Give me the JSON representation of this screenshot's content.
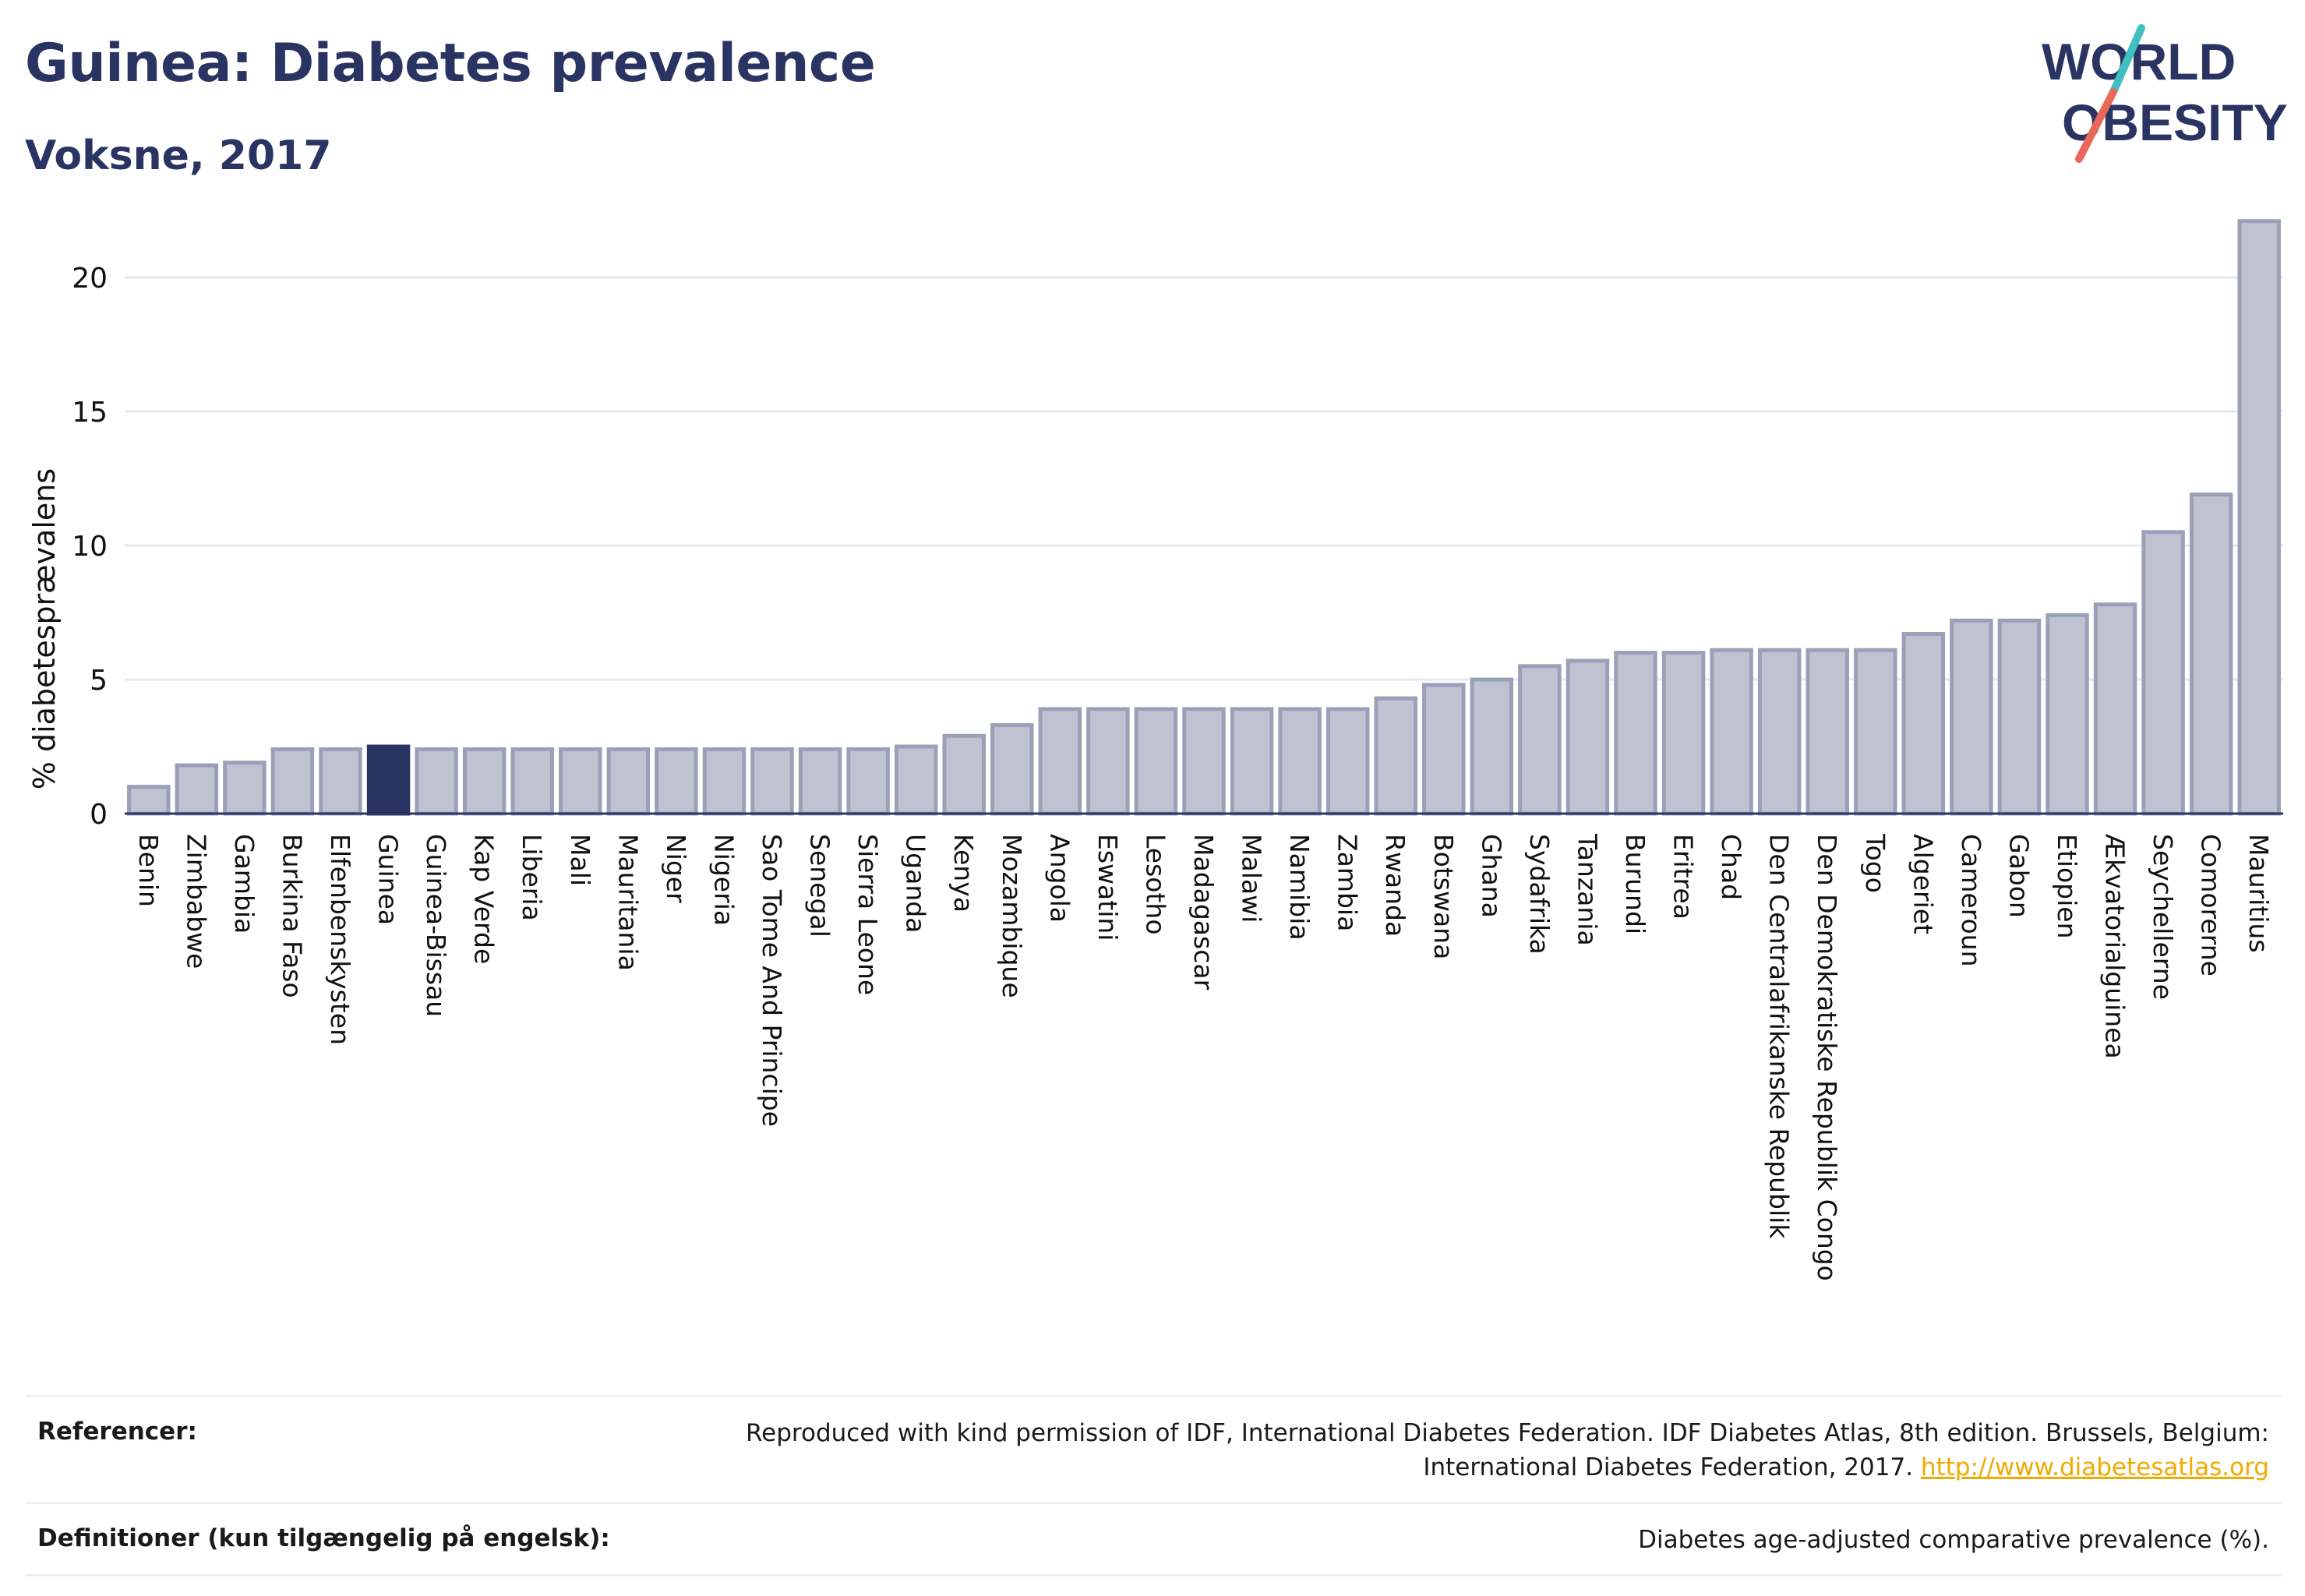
{
  "header": {
    "title": "Guinea: Diabetes prevalence",
    "subtitle": "Voksne, 2017"
  },
  "logo": {
    "line1": "WORLD",
    "line2": "OBESITY",
    "slash_colors": [
      "#3fbfbf",
      "#e8685a"
    ]
  },
  "chart_data": {
    "type": "bar",
    "ylabel": "% diabetesprævalens",
    "xlabel": "",
    "ylim": [
      0,
      22.5
    ],
    "yticks": [
      0,
      5,
      10,
      15,
      20
    ],
    "grid": true,
    "highlight": "Guinea",
    "colors": {
      "highlight": "#2a3462",
      "bar_fill": "#bfc3d1",
      "bar_stroke": "#9aa0b8",
      "axis": "#2a3462",
      "grid": "#e6e8ef"
    },
    "categories": [
      "Benin",
      "Zimbabwe",
      "Gambia",
      "Burkina Faso",
      "Elfenbenskysten",
      "Guinea",
      "Guinea-Bissau",
      "Kap Verde",
      "Liberia",
      "Mali",
      "Mauritania",
      "Niger",
      "Nigeria",
      "Sao Tome And Principe",
      "Senegal",
      "Sierra Leone",
      "Uganda",
      "Kenya",
      "Mozambique",
      "Angola",
      "Eswatini",
      "Lesotho",
      "Madagascar",
      "Malawi",
      "Namibia",
      "Zambia",
      "Rwanda",
      "Botswana",
      "Ghana",
      "Sydafrika",
      "Tanzania",
      "Burundi",
      "Eritrea",
      "Chad",
      "Den Centralafrikanske Republik",
      "Den Demokratiske Republik Congo",
      "Togo",
      "Algeriet",
      "Cameroun",
      "Gabon",
      "Etiopien",
      "Ækvatorialguinea",
      "Seychellerne",
      "Comorerne",
      "Mauritius"
    ],
    "values": [
      1.0,
      1.8,
      1.9,
      2.4,
      2.4,
      2.5,
      2.4,
      2.4,
      2.4,
      2.4,
      2.4,
      2.4,
      2.4,
      2.4,
      2.4,
      2.4,
      2.5,
      2.9,
      3.3,
      3.9,
      3.9,
      3.9,
      3.9,
      3.9,
      3.9,
      3.9,
      4.3,
      4.8,
      5.0,
      5.5,
      5.7,
      6.0,
      6.0,
      6.1,
      6.1,
      6.1,
      6.1,
      6.7,
      7.2,
      7.2,
      7.4,
      7.8,
      10.5,
      11.9,
      22.1
    ]
  },
  "footer": {
    "ref_label": "Referencer:",
    "ref_text_line1": "Reproduced with kind permission of IDF, International Diabetes Federation. IDF Diabetes Atlas, 8th edition. Brussels, Belgium:",
    "ref_text_line2": "International Diabetes Federation, 2017.",
    "ref_link": "http://www.diabetesatlas.org",
    "def_label": "Definitioner (kun tilgængelig på engelsk):",
    "def_text": "Diabetes age-adjusted comparative prevalence (%)."
  }
}
